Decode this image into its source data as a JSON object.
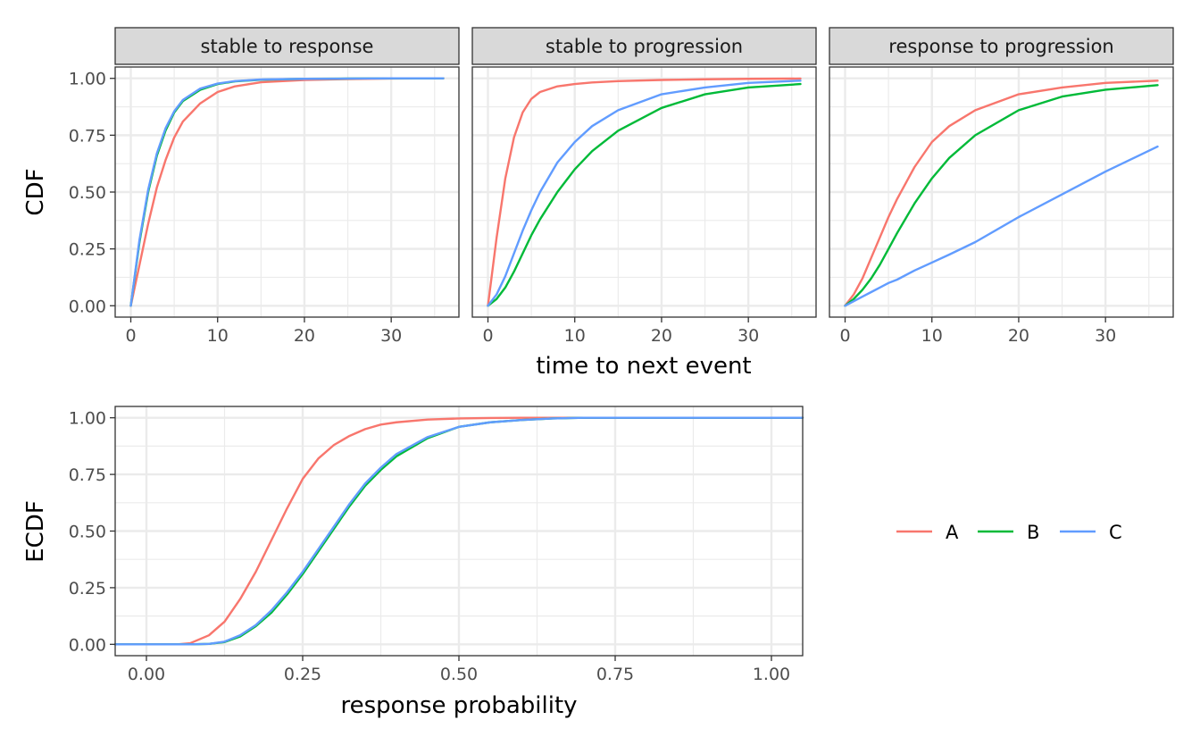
{
  "colors": {
    "A": "#F8766D",
    "B": "#00BA38",
    "C": "#619CFF"
  },
  "legend": [
    "A",
    "B",
    "C"
  ],
  "chart_data": [
    {
      "type": "line",
      "facets": [
        "stable to response",
        "stable to progression",
        "response to progression"
      ],
      "xlabel": "time to next event",
      "ylabel": "CDF",
      "xlim": [
        -1.8,
        37.8
      ],
      "ylim": [
        -0.05,
        1.05
      ],
      "xticks": [
        0,
        10,
        20,
        30
      ],
      "xtick_labels": [
        "0",
        "10",
        "20",
        "30"
      ],
      "yticks": [
        0,
        0.25,
        0.5,
        0.75,
        1.0
      ],
      "ytick_labels": [
        "0.00",
        "0.25",
        "0.50",
        "0.75",
        "1.00"
      ],
      "grid": true,
      "x": [
        0,
        1,
        2,
        3,
        4,
        5,
        6,
        8,
        10,
        12,
        15,
        20,
        25,
        30,
        36
      ],
      "panels": [
        {
          "facet": "stable to response",
          "series": [
            {
              "name": "A",
              "values": [
                0.0,
                0.18,
                0.36,
                0.52,
                0.64,
                0.74,
                0.81,
                0.89,
                0.94,
                0.965,
                0.983,
                0.993,
                0.997,
                0.999,
                1.0
              ]
            },
            {
              "name": "B",
              "values": [
                0.0,
                0.28,
                0.5,
                0.66,
                0.77,
                0.85,
                0.9,
                0.95,
                0.975,
                0.987,
                0.994,
                0.998,
                0.999,
                1.0,
                1.0
              ]
            },
            {
              "name": "C",
              "values": [
                0.0,
                0.29,
                0.51,
                0.67,
                0.78,
                0.855,
                0.905,
                0.955,
                0.977,
                0.988,
                0.995,
                0.998,
                0.999,
                1.0,
                1.0
              ]
            }
          ]
        },
        {
          "facet": "stable to progression",
          "series": [
            {
              "name": "A",
              "values": [
                0.0,
                0.3,
                0.56,
                0.74,
                0.85,
                0.91,
                0.94,
                0.965,
                0.975,
                0.982,
                0.988,
                0.993,
                0.996,
                0.998,
                0.999
              ]
            },
            {
              "name": "B",
              "values": [
                0.0,
                0.03,
                0.08,
                0.15,
                0.23,
                0.31,
                0.38,
                0.5,
                0.6,
                0.68,
                0.77,
                0.87,
                0.93,
                0.96,
                0.975
              ]
            },
            {
              "name": "C",
              "values": [
                0.0,
                0.05,
                0.13,
                0.23,
                0.33,
                0.42,
                0.5,
                0.63,
                0.72,
                0.79,
                0.86,
                0.93,
                0.96,
                0.98,
                0.99
              ]
            }
          ]
        },
        {
          "facet": "response to progression",
          "series": [
            {
              "name": "A",
              "values": [
                0.0,
                0.05,
                0.12,
                0.21,
                0.3,
                0.39,
                0.47,
                0.61,
                0.72,
                0.79,
                0.86,
                0.93,
                0.96,
                0.98,
                0.99
              ]
            },
            {
              "name": "B",
              "values": [
                0.0,
                0.03,
                0.07,
                0.12,
                0.18,
                0.25,
                0.32,
                0.45,
                0.56,
                0.65,
                0.75,
                0.86,
                0.92,
                0.95,
                0.97
              ]
            },
            {
              "name": "C",
              "values": [
                0.0,
                0.02,
                0.04,
                0.06,
                0.08,
                0.1,
                0.115,
                0.155,
                0.19,
                0.225,
                0.28,
                0.39,
                0.49,
                0.59,
                0.7
              ]
            }
          ]
        }
      ]
    },
    {
      "type": "line",
      "xlabel": "response probability",
      "ylabel": "ECDF",
      "xlim": [
        -0.05,
        1.05
      ],
      "ylim": [
        -0.05,
        1.05
      ],
      "xticks": [
        0,
        0.25,
        0.5,
        0.75,
        1.0
      ],
      "xtick_labels": [
        "0.00",
        "0.25",
        "0.50",
        "0.75",
        "1.00"
      ],
      "yticks": [
        0,
        0.25,
        0.5,
        0.75,
        1.0
      ],
      "ytick_labels": [
        "0.00",
        "0.25",
        "0.50",
        "0.75",
        "1.00"
      ],
      "grid": true,
      "x": [
        -0.05,
        0.05,
        0.07,
        0.1,
        0.125,
        0.15,
        0.175,
        0.2,
        0.225,
        0.25,
        0.275,
        0.3,
        0.325,
        0.35,
        0.375,
        0.4,
        0.45,
        0.5,
        0.55,
        0.6,
        0.65,
        0.7,
        1.05
      ],
      "series": [
        {
          "name": "A",
          "values": [
            0.0,
            0.0,
            0.005,
            0.04,
            0.1,
            0.2,
            0.32,
            0.46,
            0.6,
            0.73,
            0.82,
            0.88,
            0.92,
            0.95,
            0.97,
            0.98,
            0.992,
            0.997,
            0.999,
            1.0,
            1.0,
            1.0,
            1.0
          ]
        },
        {
          "name": "B",
          "values": [
            0.0,
            0.0,
            0.0,
            0.002,
            0.01,
            0.035,
            0.08,
            0.14,
            0.22,
            0.31,
            0.41,
            0.51,
            0.61,
            0.7,
            0.77,
            0.83,
            0.91,
            0.96,
            0.98,
            0.99,
            0.997,
            1.0,
            1.0
          ]
        },
        {
          "name": "C",
          "values": [
            0.0,
            0.0,
            0.0,
            0.002,
            0.012,
            0.04,
            0.085,
            0.15,
            0.23,
            0.32,
            0.42,
            0.52,
            0.62,
            0.71,
            0.78,
            0.84,
            0.915,
            0.96,
            0.98,
            0.99,
            0.997,
            1.0,
            1.0
          ]
        }
      ]
    }
  ]
}
